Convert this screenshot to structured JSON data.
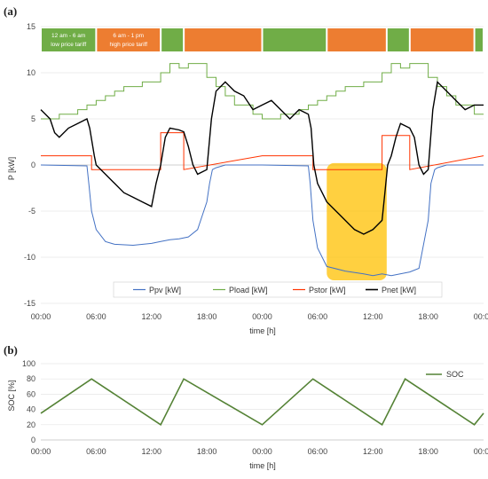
{
  "chart_data": [
    {
      "panel_label": "(a)",
      "type": "line",
      "ylabel": "P [kW]",
      "xlabel": "time [h]",
      "ylim": [
        -15,
        15
      ],
      "y_ticks": [
        "15",
        "10",
        "5",
        "0",
        "-5",
        "-10",
        "-15"
      ],
      "x_ticks": [
        "00:00",
        "06:00",
        "12:00",
        "18:00",
        "00:00",
        "06:00",
        "12:00",
        "18:00",
        "00:00"
      ],
      "xlim_hours": [
        0,
        48
      ],
      "tariff_bands": [
        {
          "start": 0,
          "end": 6,
          "color": "#70ad47",
          "label1": "12 am - 6 am",
          "label2": "low price tariff"
        },
        {
          "start": 6,
          "end": 13,
          "color": "#ed7d31",
          "label1": "6 am - 1 pm",
          "label2": "high price tariff"
        },
        {
          "start": 13,
          "end": 15.5,
          "color": "#70ad47",
          "label1": "",
          "label2": ""
        },
        {
          "start": 15.5,
          "end": 24,
          "color": "#ed7d31",
          "label1": "",
          "label2": ""
        },
        {
          "start": 24,
          "end": 31,
          "color": "#70ad47",
          "label1": "",
          "label2": ""
        },
        {
          "start": 31,
          "end": 37.5,
          "color": "#ed7d31",
          "label1": "",
          "label2": ""
        },
        {
          "start": 37.5,
          "end": 40,
          "color": "#70ad47",
          "label1": "",
          "label2": ""
        },
        {
          "start": 40,
          "end": 47,
          "color": "#ed7d31",
          "label1": "",
          "label2": ""
        },
        {
          "start": 47,
          "end": 48,
          "color": "#70ad47",
          "label1": "",
          "label2": ""
        }
      ],
      "highlight": {
        "x": [
          31,
          37.5
        ],
        "y": [
          -12.5,
          0.2
        ],
        "color": "#ffc000"
      },
      "series": [
        {
          "name": "Ppv [kW]",
          "color": "#4472c4",
          "x": [
            0,
            5,
            5.2,
            5.5,
            6,
            7,
            8,
            10,
            12,
            13,
            14,
            15,
            16,
            17,
            18,
            18.3,
            18.6,
            19,
            20,
            24,
            29,
            29.2,
            29.5,
            30,
            31,
            33,
            35,
            36,
            37,
            38,
            40,
            41,
            42,
            42.3,
            42.7,
            43,
            44,
            48
          ],
          "y": [
            0,
            -0.1,
            -2,
            -5,
            -7,
            -8.3,
            -8.6,
            -8.7,
            -8.5,
            -8.3,
            -8.1,
            -8,
            -7.8,
            -7,
            -4,
            -2,
            -0.5,
            -0.3,
            0,
            0,
            -0.1,
            -2,
            -6,
            -9,
            -11,
            -11.5,
            -11.8,
            -12,
            -11.8,
            -12,
            -11.6,
            -11.2,
            -6,
            -2,
            -0.5,
            -0.3,
            0,
            0
          ]
        },
        {
          "name": "Pload [kW]",
          "color": "#70ad47",
          "x": [
            0,
            2,
            2,
            4,
            4,
            5,
            5,
            6,
            6,
            7,
            7,
            8,
            8,
            9,
            9,
            11,
            11,
            13,
            13,
            14,
            14,
            15,
            15,
            16,
            16,
            18,
            18,
            19,
            19,
            20,
            20,
            21,
            21,
            23,
            23,
            24,
            24,
            26,
            26,
            28,
            28,
            29,
            29,
            30,
            30,
            31,
            31,
            32,
            32,
            33,
            33,
            35,
            35,
            37,
            37,
            38,
            38,
            39,
            39,
            40,
            40,
            42,
            42,
            43,
            43,
            44,
            44,
            45,
            45,
            47,
            47,
            48
          ],
          "y": [
            5,
            5,
            5.5,
            5.5,
            6,
            6,
            6.5,
            6.5,
            7,
            7,
            7.5,
            7.5,
            8,
            8,
            8.5,
            8.5,
            9,
            9,
            10,
            10,
            11,
            11,
            10.5,
            10.5,
            11,
            11,
            9.5,
            9.5,
            8.5,
            8.5,
            7.5,
            7.5,
            6.5,
            6.5,
            5.5,
            5.5,
            5,
            5,
            5.5,
            5.5,
            6,
            6,
            6.5,
            6.5,
            7,
            7,
            7.5,
            7.5,
            8,
            8,
            8.5,
            8.5,
            9,
            9,
            10,
            10,
            11,
            11,
            10.5,
            10.5,
            11,
            11,
            9.5,
            9.5,
            8.5,
            8.5,
            7.5,
            7.5,
            6.5,
            6.5,
            5.5,
            5.5
          ]
        },
        {
          "name": "Pstor [kW]",
          "color": "#ff3300",
          "x": [
            0,
            5.5,
            5.5,
            13,
            13,
            15.5,
            15.5,
            24,
            29.5,
            29.5,
            37,
            37,
            40,
            40,
            48
          ],
          "y": [
            1,
            1,
            -0.5,
            -0.5,
            3.5,
            3.5,
            -0.5,
            1,
            1,
            -0.5,
            -0.5,
            3.2,
            3.2,
            -0.5,
            1
          ]
        },
        {
          "name": "Pnet [kW]",
          "color": "#000000",
          "x": [
            0,
            1,
            1.5,
            2,
            3,
            4,
            5,
            5.3,
            5.8,
            6,
            7,
            8,
            9,
            10,
            11,
            12,
            12.5,
            13,
            13.5,
            14,
            15,
            15.5,
            16,
            16.5,
            17,
            18,
            18.5,
            19,
            20,
            21,
            22,
            23,
            24,
            25,
            26,
            27,
            28,
            29,
            29.3,
            29.6,
            30,
            31,
            32,
            33,
            34,
            35,
            36,
            37,
            37.3,
            37.6,
            38,
            38.5,
            39,
            40,
            40.5,
            41,
            41.5,
            42,
            42.5,
            43,
            44,
            45,
            46,
            47,
            48
          ],
          "y": [
            6,
            5,
            3.5,
            3,
            4,
            4.5,
            5,
            4,
            1,
            0,
            -1,
            -2,
            -3,
            -3.5,
            -4,
            -4.5,
            -2,
            0,
            3,
            4,
            3.8,
            3.6,
            2,
            0,
            -1,
            -0.5,
            5,
            8,
            9,
            8,
            7.5,
            6,
            6.5,
            7,
            6,
            5,
            6,
            5.5,
            4,
            0,
            -2,
            -4,
            -5,
            -6,
            -7,
            -7.5,
            -7,
            -6,
            -3,
            0,
            1,
            3,
            4.5,
            4,
            3,
            0,
            -1,
            -0.5,
            6,
            9,
            8,
            7,
            6,
            6.5,
            6.5
          ]
        }
      ]
    },
    {
      "panel_label": "(b)",
      "type": "line",
      "ylabel": "SOC [%]",
      "xlabel": "time [h]",
      "ylim": [
        0,
        100
      ],
      "y_ticks": [
        "100",
        "80",
        "60",
        "40",
        "20",
        "0"
      ],
      "x_ticks": [
        "00:00",
        "06:00",
        "12:00",
        "18:00",
        "00:00",
        "06:00",
        "12:00",
        "18:00",
        "00:00"
      ],
      "xlim_hours": [
        0,
        48
      ],
      "series": [
        {
          "name": "SOC",
          "color": "#548235",
          "x": [
            0,
            5.5,
            13,
            15.5,
            24,
            29.5,
            37,
            39.5,
            47,
            48
          ],
          "y": [
            35,
            80,
            20,
            80,
            20,
            80,
            20,
            80,
            20,
            35
          ]
        }
      ]
    }
  ]
}
